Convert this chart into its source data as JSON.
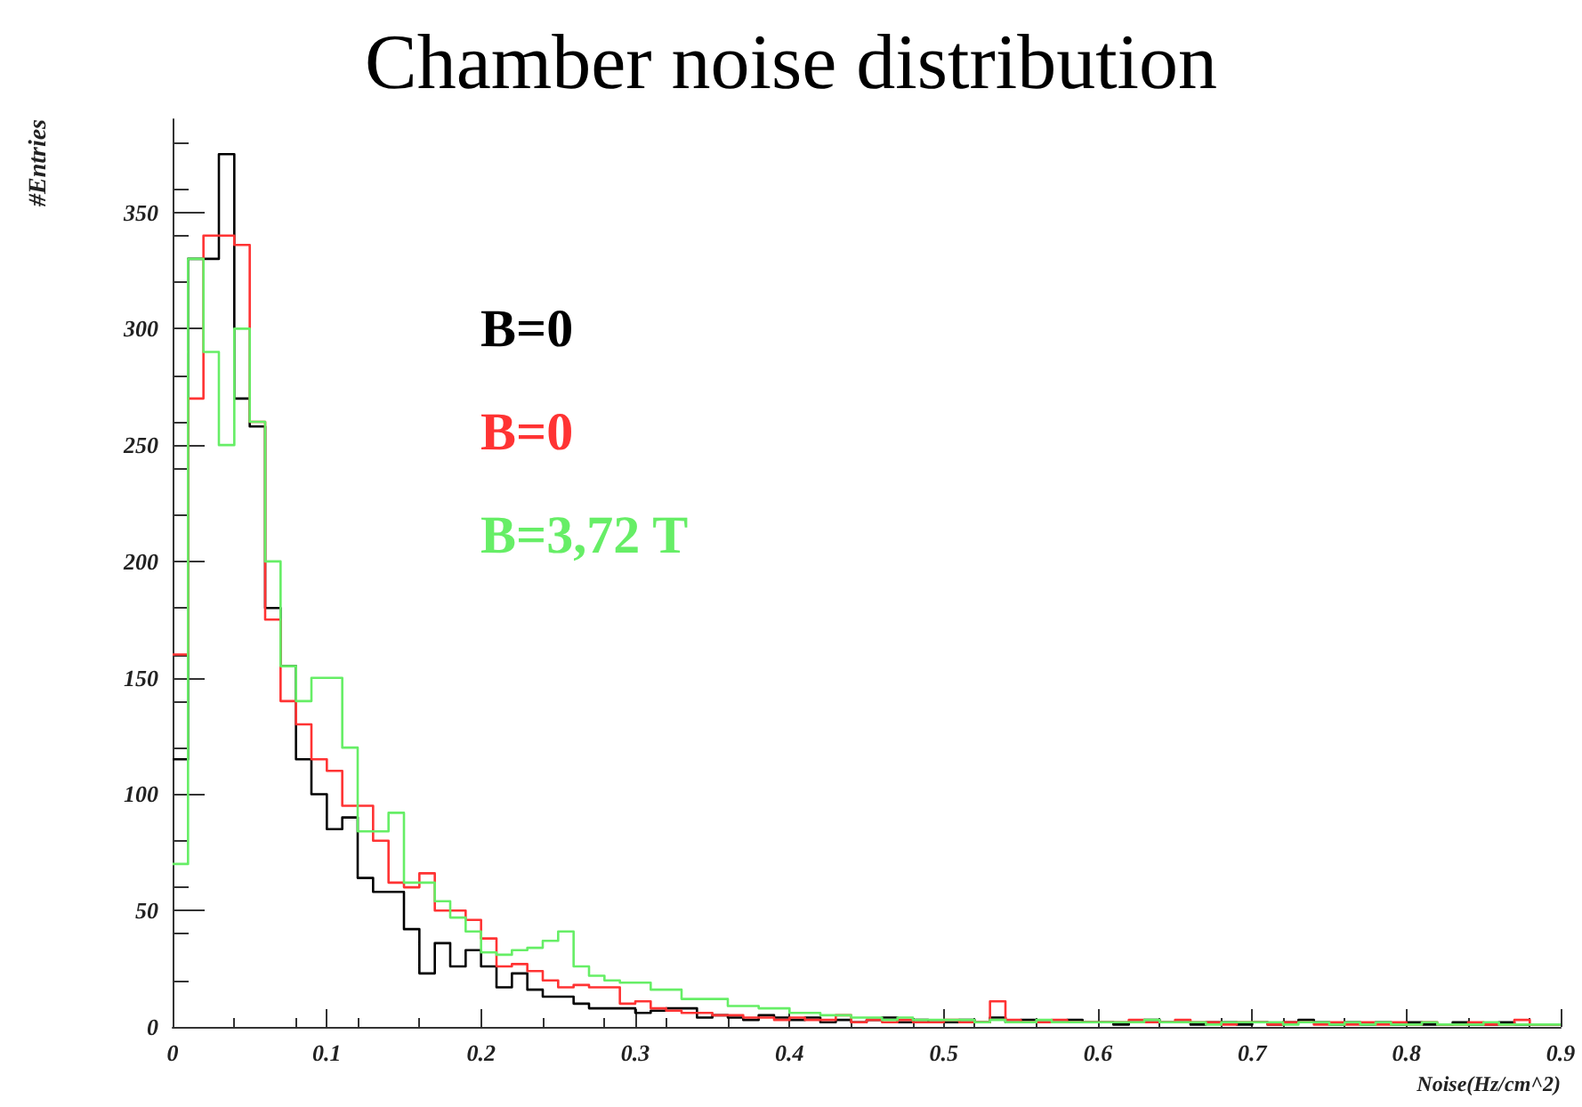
{
  "chart_data": {
    "type": "histogram",
    "title": "Chamber noise distribution",
    "xlabel": "Noise(Hz/cm^2)",
    "ylabel": "#Entries",
    "bins": [
      0,
      0.01,
      0.02,
      0.03,
      0.04,
      0.05,
      0.06,
      0.07,
      0.08,
      0.09,
      0.1,
      0.11,
      0.12,
      0.13,
      0.14,
      0.15,
      0.16,
      0.17,
      0.18,
      0.19,
      0.2,
      0.21,
      0.22,
      0.23,
      0.24,
      0.25,
      0.26,
      0.27,
      0.28,
      0.29,
      0.3,
      0.31,
      0.32,
      0.33,
      0.34,
      0.35,
      0.36,
      0.37,
      0.38,
      0.39,
      0.4,
      0.41,
      0.42,
      0.43,
      0.44,
      0.45,
      0.46,
      0.47,
      0.48,
      0.49,
      0.5,
      0.51,
      0.52,
      0.53,
      0.54,
      0.55,
      0.56,
      0.57,
      0.58,
      0.59,
      0.6,
      0.61,
      0.62,
      0.63,
      0.64,
      0.65,
      0.66,
      0.67,
      0.68,
      0.69,
      0.7,
      0.71,
      0.72,
      0.73,
      0.74,
      0.75,
      0.76,
      0.77,
      0.78,
      0.79,
      0.8,
      0.81,
      0.82,
      0.83,
      0.84,
      0.85,
      0.86,
      0.87,
      0.88,
      0.89,
      0.9
    ],
    "series": [
      {
        "name": "B=0",
        "color": "#000000",
        "values": [
          115,
          330,
          330,
          375,
          270,
          258,
          180,
          155,
          115,
          100,
          85,
          90,
          64,
          58,
          58,
          42,
          23,
          36,
          26,
          33,
          26,
          17,
          23,
          16,
          13,
          13,
          10,
          8,
          8,
          8,
          6,
          7,
          8,
          8,
          4,
          5,
          4,
          3,
          5,
          4,
          3,
          4,
          2,
          3,
          2,
          3,
          4,
          2,
          3,
          2,
          2,
          3,
          2,
          4,
          2,
          3,
          2,
          2,
          3,
          2,
          2,
          1,
          2,
          3,
          2,
          2,
          1,
          2,
          2,
          1,
          2,
          1,
          2,
          3,
          2,
          1,
          2,
          1,
          2,
          1,
          2,
          1,
          1,
          2,
          1,
          1,
          2,
          1,
          1,
          1
        ]
      },
      {
        "name": "B=0",
        "color": "#ff3333",
        "values": [
          160,
          270,
          340,
          340,
          336,
          260,
          175,
          140,
          130,
          115,
          110,
          95,
          95,
          80,
          62,
          60,
          66,
          50,
          50,
          46,
          38,
          26,
          27,
          24,
          20,
          17,
          18,
          17,
          17,
          10,
          11,
          8,
          7,
          6,
          6,
          5,
          5,
          4,
          4,
          3,
          4,
          3,
          3,
          5,
          2,
          3,
          2,
          3,
          2,
          2,
          3,
          2,
          2,
          11,
          3,
          2,
          2,
          3,
          2,
          2,
          2,
          2,
          3,
          2,
          2,
          3,
          2,
          2,
          1,
          2,
          2,
          1,
          2,
          2,
          1,
          2,
          1,
          2,
          1,
          2,
          1,
          2,
          1,
          1,
          2,
          1,
          1,
          3,
          1,
          1
        ]
      },
      {
        "name": "B=3,72 T",
        "color": "#66ee66",
        "values": [
          70,
          330,
          290,
          250,
          300,
          260,
          200,
          155,
          140,
          150,
          150,
          120,
          84,
          84,
          92,
          62,
          62,
          54,
          47,
          41,
          32,
          31,
          33,
          34,
          37,
          41,
          26,
          22,
          20,
          19,
          19,
          16,
          16,
          12,
          12,
          12,
          9,
          9,
          8,
          8,
          6,
          6,
          5,
          5,
          4,
          4,
          3,
          4,
          3,
          3,
          3,
          3,
          2,
          3,
          2,
          2,
          3,
          2,
          2,
          2,
          2,
          2,
          2,
          3,
          2,
          2,
          2,
          1,
          2,
          2,
          2,
          2,
          1,
          2,
          2,
          1,
          2,
          1,
          2,
          1,
          1,
          2,
          1,
          1,
          1,
          2,
          1,
          1,
          1,
          1
        ]
      }
    ],
    "xlim": [
      0,
      0.9
    ],
    "xticks": [
      0,
      0.1,
      0.2,
      0.3,
      0.4,
      0.5,
      0.6,
      0.7,
      0.8,
      0.9
    ],
    "ylim": [
      0,
      390
    ],
    "yticks": [
      0,
      50,
      100,
      150,
      200,
      250,
      300,
      350
    ],
    "grid": false,
    "legend": "top left"
  }
}
